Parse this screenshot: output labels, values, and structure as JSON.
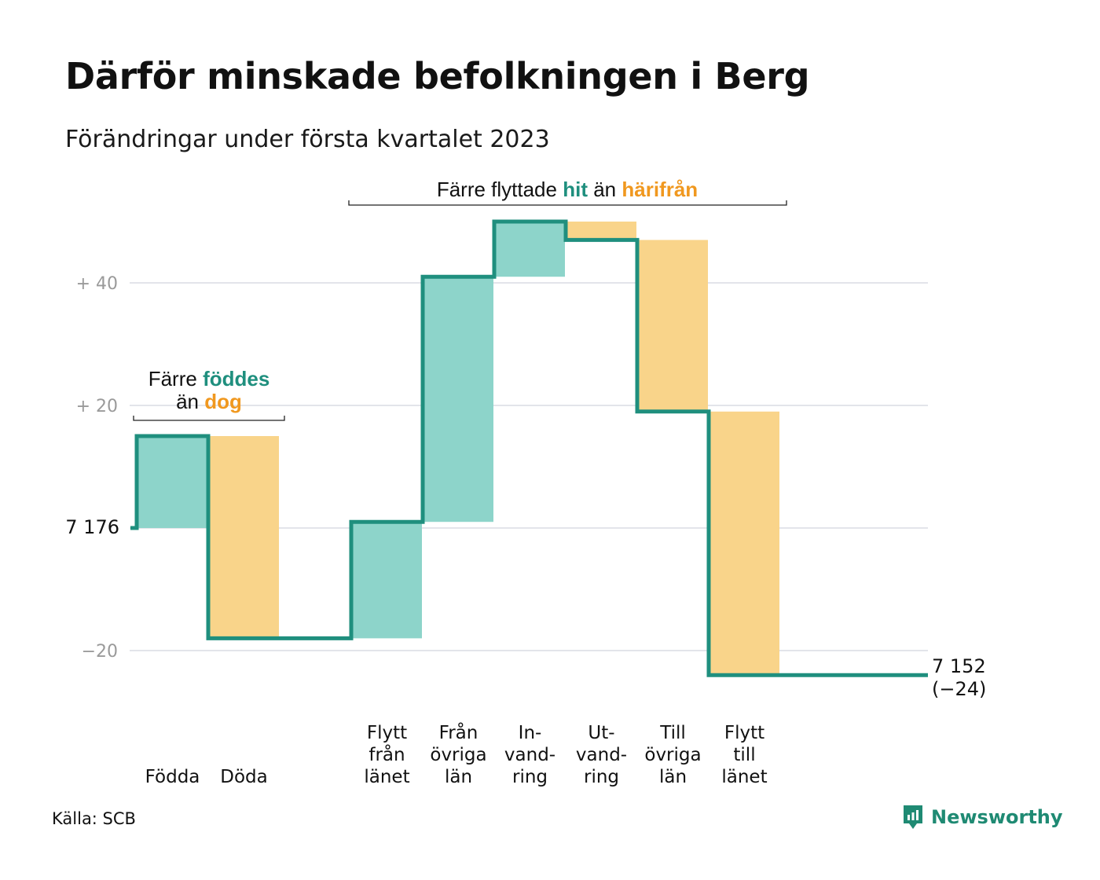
{
  "title": "Därför minskade befolkningen i Berg",
  "subtitle": "Förändringar under första kvartalet 2023",
  "source": "Källa: SCB",
  "brand": "Newsworthy",
  "colors": {
    "inflow": "#8dd4ca",
    "outflow": "#f9d48a",
    "line": "#1f8f7e",
    "inflow_text": "#1f8f7e",
    "outflow_text": "#f0981f",
    "grid": "#e3e4ea",
    "tick": "#9a9a9a"
  },
  "annotations": {
    "births": {
      "prefix": "Färre",
      "inflow_word": "föddes",
      "mid": "än",
      "outflow_word": "dog"
    },
    "migration": {
      "prefix": "Färre flyttade",
      "inflow_word": "hit",
      "mid": "än",
      "outflow_word": "härifrån"
    }
  },
  "chart_data": {
    "type": "waterfall",
    "start": {
      "label": "7 176",
      "value": 7176
    },
    "end": {
      "label": "7 152",
      "change_label": "(−24)",
      "value": 7152,
      "change": -24
    },
    "y_axis": {
      "ticks": [
        {
          "value": 40,
          "label": "+ 40"
        },
        {
          "value": 20,
          "label": "+ 20"
        },
        {
          "value": 0,
          "label": ""
        },
        {
          "value": -20,
          "label": "−20"
        }
      ],
      "range": [
        -24,
        50
      ],
      "grid": true
    },
    "steps": [
      {
        "label": [
          "",
          "",
          "Födda"
        ],
        "change": 15,
        "kind": "inflow"
      },
      {
        "label": [
          "",
          "",
          "Döda"
        ],
        "change": -33,
        "kind": "outflow"
      },
      {
        "label": [
          "",
          "",
          ""
        ],
        "change": 0,
        "kind": "gap"
      },
      {
        "label": [
          "Flytt",
          "från",
          "länet"
        ],
        "change": 19,
        "kind": "inflow"
      },
      {
        "label": [
          "Från",
          "övriga",
          "län"
        ],
        "change": 40,
        "kind": "inflow"
      },
      {
        "label": [
          "In-",
          "vand-",
          "ring"
        ],
        "change": 9,
        "kind": "inflow"
      },
      {
        "label": [
          "Ut-",
          "vand-",
          "ring"
        ],
        "change": -3,
        "kind": "outflow"
      },
      {
        "label": [
          "Till",
          "övriga",
          "län"
        ],
        "change": -28,
        "kind": "outflow"
      },
      {
        "label": [
          "Flytt",
          "till",
          "länet"
        ],
        "change": -43,
        "kind": "outflow"
      }
    ]
  }
}
